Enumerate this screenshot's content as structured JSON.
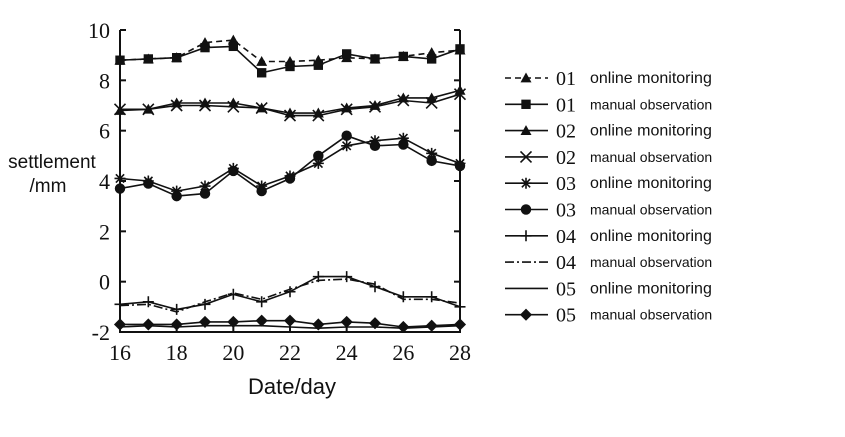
{
  "chart_data": {
    "type": "line",
    "xlabel": "Date/day",
    "ylabel_line1": "settlement",
    "ylabel_line2": "/mm",
    "xlim": [
      16,
      28
    ],
    "ylim": [
      -2,
      10
    ],
    "x_ticks": [
      "16",
      "18",
      "20",
      "22",
      "24",
      "26",
      "28"
    ],
    "y_ticks": [
      "10",
      "8",
      "6",
      "4",
      "2",
      "0",
      "-2"
    ],
    "x": [
      16,
      17,
      18,
      19,
      20,
      21,
      22,
      23,
      24,
      25,
      26,
      27,
      28
    ],
    "legend_position": "right",
    "series": [
      {
        "id": "01",
        "label": "online monitoring",
        "marker": "triangle",
        "dash": "dashed",
        "values": [
          8.8,
          8.85,
          8.9,
          9.5,
          9.6,
          8.75,
          8.75,
          8.8,
          8.9,
          8.85,
          8.95,
          9.1,
          9.2
        ]
      },
      {
        "id": "01",
        "label": "manual observation",
        "marker": "square",
        "dash": "solid",
        "values": [
          8.8,
          8.85,
          8.9,
          9.3,
          9.35,
          8.3,
          8.55,
          8.6,
          9.05,
          8.85,
          8.95,
          8.85,
          9.25
        ]
      },
      {
        "id": "02",
        "label": "online monitoring",
        "marker": "triangle",
        "dash": "solid",
        "values": [
          6.8,
          6.85,
          7.1,
          7.1,
          7.1,
          6.9,
          6.7,
          6.7,
          6.9,
          7.0,
          7.3,
          7.3,
          7.6
        ]
      },
      {
        "id": "02",
        "label": "manual observation",
        "marker": "x",
        "dash": "solid",
        "values": [
          6.85,
          6.85,
          7.0,
          7.0,
          6.95,
          6.9,
          6.6,
          6.6,
          6.85,
          6.95,
          7.2,
          7.1,
          7.45
        ]
      },
      {
        "id": "03",
        "label": "online monitoring",
        "marker": "asterisk",
        "dash": "solid",
        "values": [
          4.1,
          4.0,
          3.6,
          3.8,
          4.5,
          3.8,
          4.2,
          4.7,
          5.4,
          5.6,
          5.7,
          5.1,
          4.7
        ]
      },
      {
        "id": "03",
        "label": "manual observation",
        "marker": "circle",
        "dash": "solid",
        "values": [
          3.7,
          3.9,
          3.4,
          3.5,
          4.4,
          3.6,
          4.1,
          5.0,
          5.8,
          5.4,
          5.45,
          4.8,
          4.6
        ]
      },
      {
        "id": "04",
        "label": "online monitoring",
        "marker": "plus",
        "dash": "solid",
        "values": [
          -0.9,
          -0.8,
          -1.1,
          -0.9,
          -0.5,
          -0.8,
          -0.4,
          0.2,
          0.2,
          -0.2,
          -0.6,
          -0.6,
          -1.0
        ]
      },
      {
        "id": "04",
        "label": "manual observation",
        "marker": "none",
        "dash": "dashdot",
        "values": [
          -0.95,
          -0.9,
          -1.2,
          -0.8,
          -0.45,
          -0.7,
          -0.3,
          0.05,
          0.1,
          -0.1,
          -0.7,
          -0.7,
          -0.85
        ]
      },
      {
        "id": "05",
        "label": "online monitoring",
        "marker": "none",
        "dash": "solid",
        "values": [
          -1.8,
          -1.75,
          -1.8,
          -1.75,
          -1.75,
          -1.75,
          -1.8,
          -1.85,
          -1.8,
          -1.8,
          -1.85,
          -1.8,
          -1.75
        ]
      },
      {
        "id": "05",
        "label": "manual observation",
        "marker": "diamond",
        "dash": "solid",
        "values": [
          -1.7,
          -1.7,
          -1.7,
          -1.6,
          -1.6,
          -1.55,
          -1.55,
          -1.7,
          -1.6,
          -1.65,
          -1.8,
          -1.75,
          -1.7
        ]
      }
    ]
  }
}
